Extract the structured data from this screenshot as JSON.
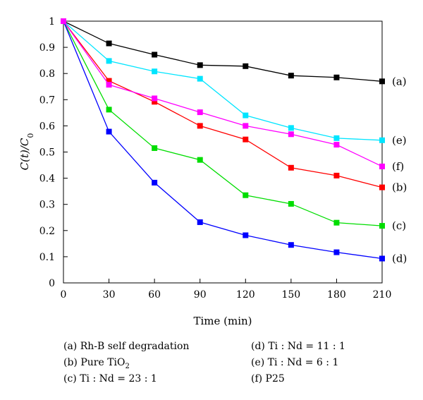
{
  "chart_data": {
    "type": "line",
    "xlabel": "Time (min)",
    "ylabel": "C(t)/C0",
    "ylabel_parts": {
      "main": "C(t)/C",
      "sub": "0"
    },
    "x": [
      0,
      30,
      60,
      90,
      120,
      150,
      180,
      210
    ],
    "xticks": [
      0,
      30,
      60,
      90,
      120,
      150,
      180,
      210
    ],
    "yticks": [
      0,
      0.1,
      0.2,
      0.3,
      0.4,
      0.5,
      0.6,
      0.7,
      0.8,
      0.9,
      1
    ],
    "xlim": [
      0,
      210
    ],
    "ylim": [
      0,
      1
    ],
    "grid": false,
    "series": [
      {
        "key": "a",
        "end_label": "(a)",
        "color": "#000000",
        "values": [
          1,
          0.915,
          0.872,
          0.832,
          0.828,
          0.792,
          0.785,
          0.77
        ]
      },
      {
        "key": "b",
        "end_label": "(b)",
        "color": "#ff0000",
        "values": [
          1,
          0.772,
          0.692,
          0.6,
          0.548,
          0.44,
          0.41,
          0.365
        ]
      },
      {
        "key": "c",
        "end_label": "(c)",
        "color": "#00dd00",
        "values": [
          1,
          0.662,
          0.515,
          0.47,
          0.335,
          0.302,
          0.23,
          0.218
        ]
      },
      {
        "key": "d",
        "end_label": "(d)",
        "color": "#0000ff",
        "values": [
          1,
          0.578,
          0.383,
          0.232,
          0.182,
          0.145,
          0.117,
          0.093
        ]
      },
      {
        "key": "e",
        "end_label": "(e)",
        "color": "#00e5ff",
        "values": [
          1,
          0.848,
          0.808,
          0.78,
          0.64,
          0.592,
          0.553,
          0.545
        ]
      },
      {
        "key": "f",
        "end_label": "(f)",
        "color": "#ff00ff",
        "values": [
          1,
          0.757,
          0.705,
          0.652,
          0.6,
          0.568,
          0.528,
          0.445
        ]
      }
    ]
  },
  "legend": {
    "items": [
      {
        "text": "(a) Rh-B self degradation"
      },
      {
        "text": "(b) Pure TiO",
        "sub": "2"
      },
      {
        "text": "(c) Ti : Nd = 23 : 1"
      },
      {
        "text": "(d) Ti : Nd = 11 : 1"
      },
      {
        "text": "(e) Ti : Nd = 6 : 1"
      },
      {
        "text": "(f) P25"
      }
    ]
  }
}
